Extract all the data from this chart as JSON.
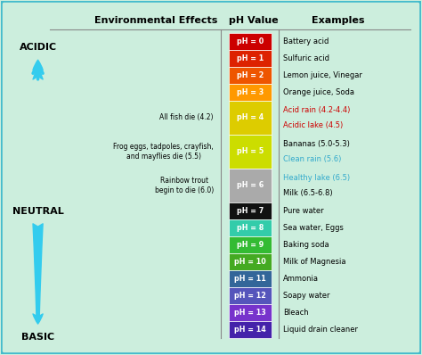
{
  "background_color": "#cceedd",
  "border_color": "#44bbcc",
  "title_col1": "Environmental Effects",
  "title_col2": "pH Value",
  "title_col3": "Examples",
  "ph_levels": [
    0,
    1,
    2,
    3,
    4,
    5,
    6,
    7,
    8,
    9,
    10,
    11,
    12,
    13,
    14
  ],
  "ph_colors": [
    "#cc0000",
    "#dd2200",
    "#ee5500",
    "#ff9900",
    "#ddcc00",
    "#ccdd00",
    "#aaaaaa",
    "#111111",
    "#33ccaa",
    "#33bb33",
    "#44aa22",
    "#336699",
    "#5555bb",
    "#7733cc",
    "#4422aa"
  ],
  "row_heights": [
    1,
    1,
    1,
    1,
    2,
    2,
    2,
    1,
    1,
    1,
    1,
    1,
    1,
    1,
    1
  ],
  "examples_line1": [
    "Battery acid",
    "Sulfuric acid",
    "Lemon juice, Vinegar",
    "Orange juice, Soda",
    "Acid rain (4.2-4.4)",
    "Bananas (5.0-5.3)",
    "Healthy lake (6.5)",
    "Pure water",
    "Sea water, Eggs",
    "Baking soda",
    "Milk of Magnesia",
    "Ammonia",
    "Soapy water",
    "Bleach",
    "Liquid drain cleaner"
  ],
  "examples_line2": [
    "",
    "",
    "",
    "",
    "Acidic lake (4.5)",
    "Clean rain (5.6)",
    "Milk (6.5-6.8)",
    "",
    "",
    "",
    "",
    "",
    "",
    "",
    ""
  ],
  "line1_colors": [
    "black",
    "black",
    "black",
    "black",
    "#cc0000",
    "black",
    "#33aacc",
    "black",
    "black",
    "black",
    "black",
    "black",
    "black",
    "black",
    "black"
  ],
  "line2_colors": [
    "",
    "",
    "",
    "",
    "#cc0000",
    "#33aacc",
    "black",
    "",
    "",
    "",
    "",
    "",
    "",
    "",
    ""
  ],
  "env_effects": {
    "4": "All fish die (4.2)",
    "5": "Frog eggs, tadpoles, crayfish,\nand mayflies die (5.5)",
    "6": "Rainbow trout\nbegin to die (6.0)"
  },
  "arrow_color": "#33ccee",
  "acidic_label": "ACIDIC",
  "neutral_label": "NEUTRAL",
  "basic_label": "BASIC"
}
